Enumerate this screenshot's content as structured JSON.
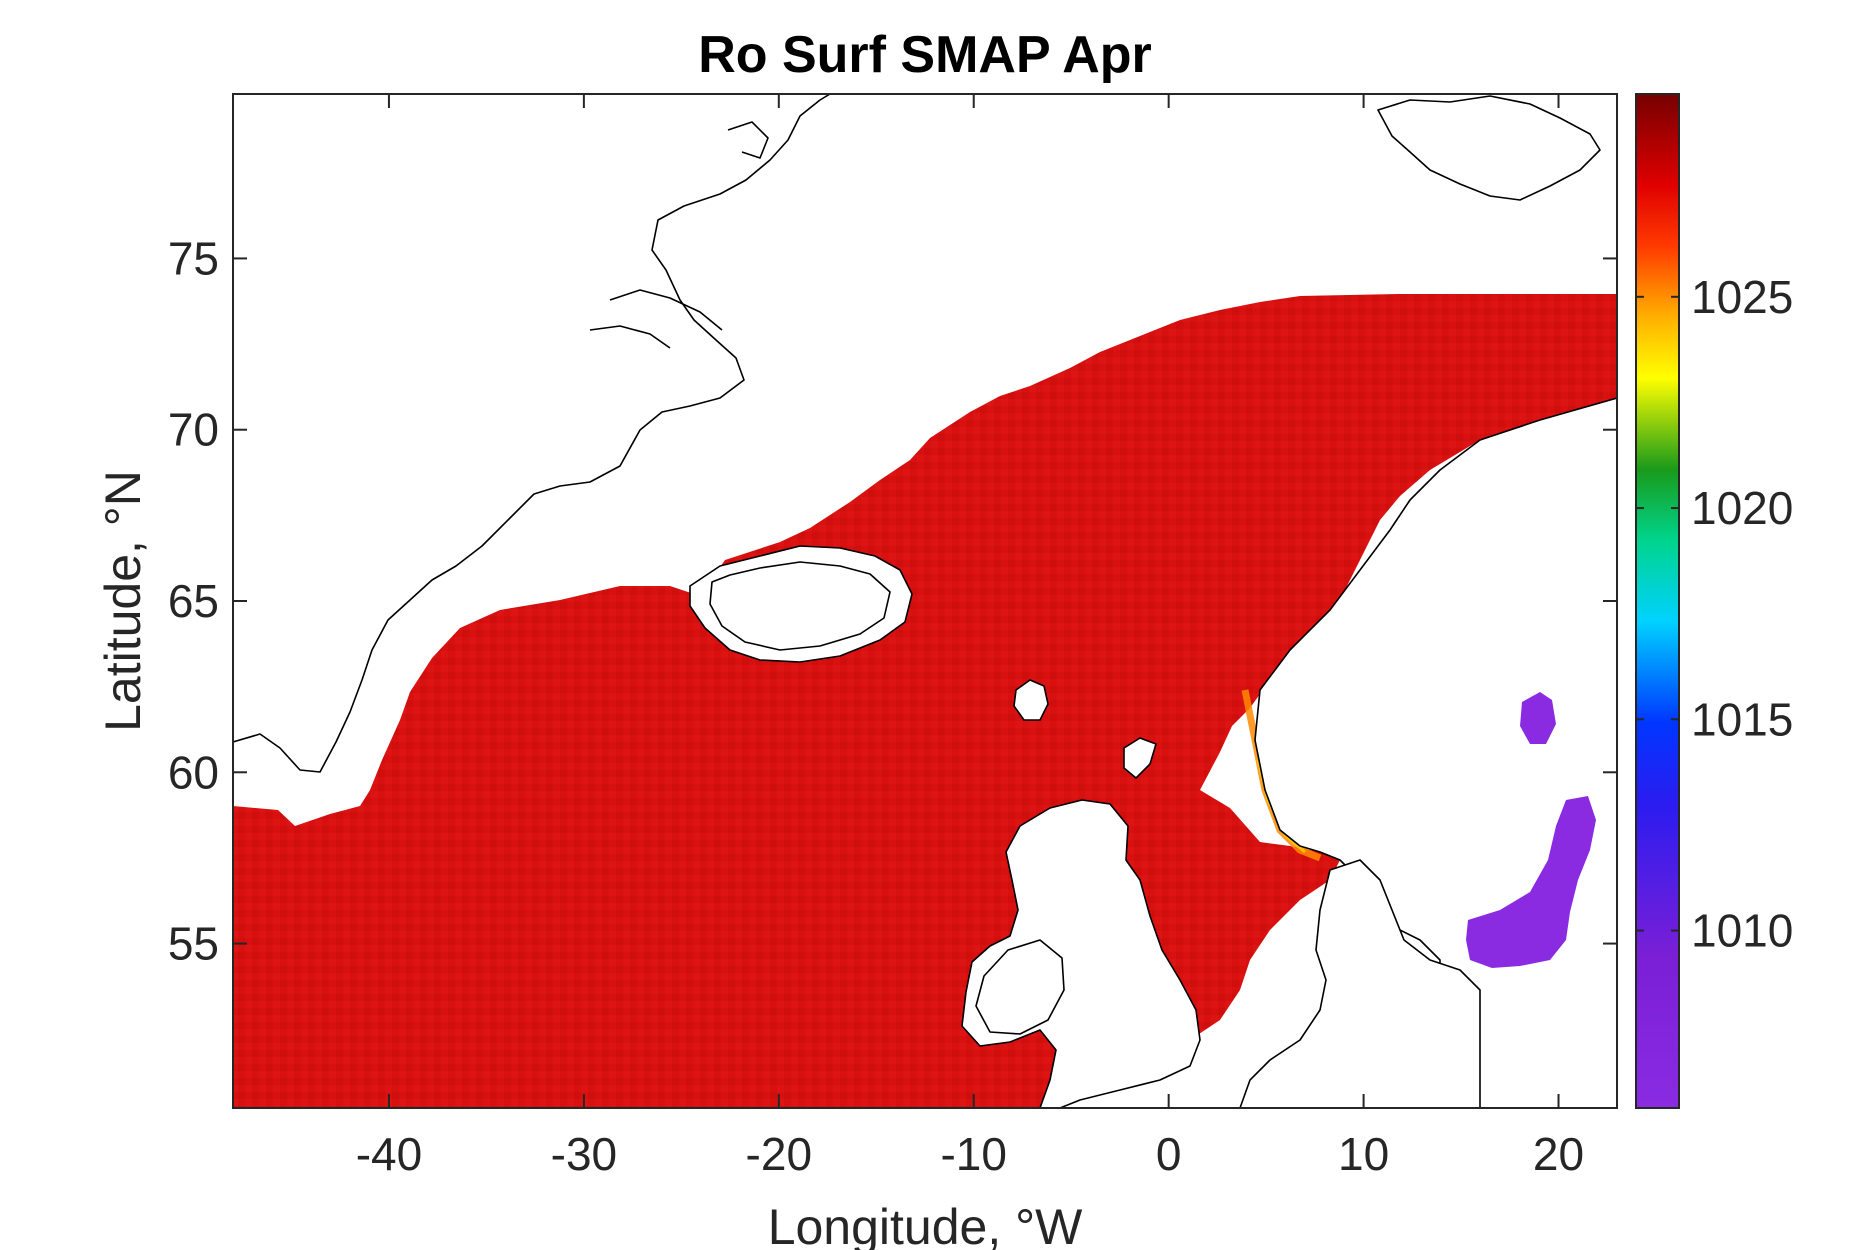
{
  "chart_data": {
    "type": "heatmap",
    "title": "Ro Surf SMAP Apr",
    "xlabel": "Longitude, °W",
    "ylabel": "Latitude, °N",
    "xlim": [
      -48,
      23
    ],
    "ylim": [
      50.2,
      79.8
    ],
    "x_ticks": [
      -40,
      -30,
      -20,
      -10,
      0,
      10,
      20
    ],
    "y_ticks": [
      55,
      60,
      65,
      70,
      75
    ],
    "x_tick_labels": [
      "-40",
      "-30",
      "-20",
      "-10",
      "0",
      "10",
      "20"
    ],
    "y_tick_labels": [
      "55",
      "60",
      "65",
      "70",
      "75"
    ],
    "colorbar": {
      "range": [
        1005.8,
        1029.8
      ],
      "ticks": [
        1010,
        1015,
        1020,
        1025
      ],
      "tick_labels": [
        "1010",
        "1015",
        "1020",
        "1025"
      ],
      "colormap": "jet-purple-to-darkred"
    },
    "field_summary": {
      "open_ocean_value": 1027.5,
      "coastal_norway_value": 1024.5,
      "baltic_sea_value": 1007.5,
      "gulf_of_bothnia_value": 1007.5
    }
  }
}
